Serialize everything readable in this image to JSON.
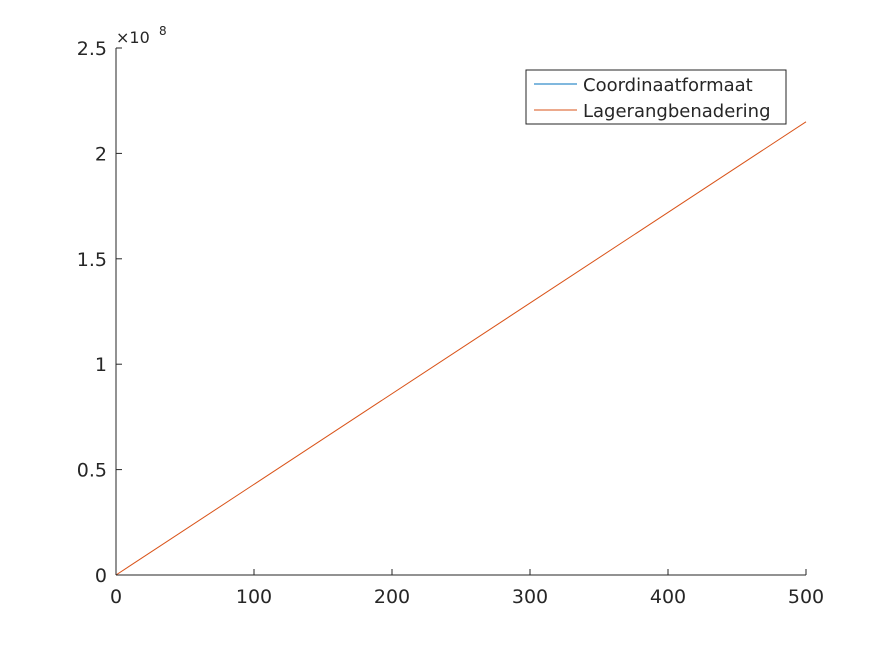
{
  "chart_data": {
    "type": "line",
    "title": "",
    "xlabel": "",
    "ylabel": "",
    "xlim": [
      0,
      500
    ],
    "ylim": [
      0,
      250000000
    ],
    "x_ticks": [
      0,
      100,
      200,
      300,
      400,
      500
    ],
    "x_tick_labels": [
      "0",
      "100",
      "200",
      "300",
      "400",
      "500"
    ],
    "y_ticks": [
      0,
      50000000,
      100000000,
      150000000,
      200000000,
      250000000
    ],
    "y_tick_labels": [
      "0",
      "0.5",
      "1",
      "1.5",
      "2",
      "2.5"
    ],
    "y_exponent": {
      "base": "×10",
      "power": "8"
    },
    "grid": false,
    "legend_position": "top-right",
    "series": [
      {
        "name": "Coordinaatformaat",
        "color": "#0072BD",
        "x": [
          0,
          500
        ],
        "values": [
          0,
          0
        ]
      },
      {
        "name": "Lagerangbenadering",
        "color": "#D95319",
        "x": [
          0,
          500
        ],
        "values": [
          0,
          215000000
        ]
      }
    ]
  }
}
